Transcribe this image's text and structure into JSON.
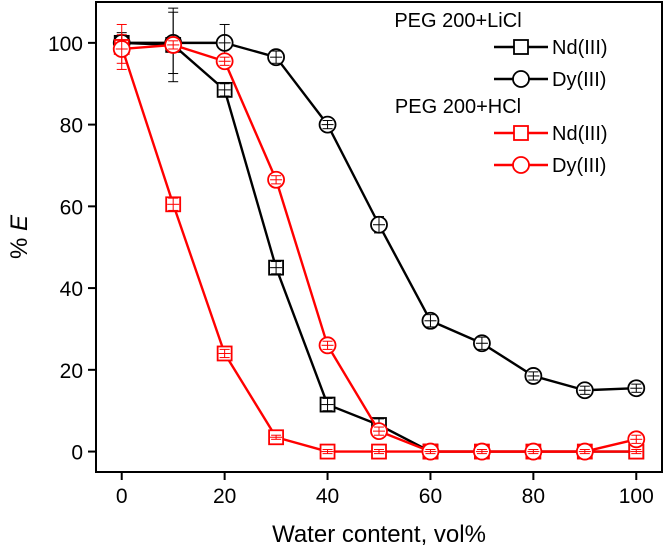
{
  "chart_data": {
    "type": "line",
    "xlabel": "Water content, vol%",
    "ylabel_prefix": "% ",
    "ylabel_var": "E",
    "xlim": [
      -5,
      105
    ],
    "ylim": [
      -5,
      110
    ],
    "xticks": [
      0,
      20,
      40,
      60,
      80,
      100
    ],
    "yticks": [
      0,
      20,
      40,
      60,
      80,
      100
    ],
    "xtick_labels": [
      "0",
      "20",
      "40",
      "60",
      "80",
      "100"
    ],
    "ytick_labels": [
      "0",
      "20",
      "40",
      "60",
      "80",
      "100"
    ],
    "grid": false,
    "legend_position": "top-right",
    "legend_groups": [
      {
        "title": "PEG 200+LiCl",
        "series": [
          0,
          1
        ]
      },
      {
        "title": "PEG 200+HCl",
        "series": [
          2,
          3
        ]
      }
    ],
    "series": [
      {
        "name": "Nd(III)",
        "group": "PEG 200+LiCl",
        "marker": "square",
        "color": "#000000",
        "x": [
          0,
          10,
          20,
          30,
          40,
          50,
          60,
          100
        ],
        "y": [
          100,
          99.5,
          88.5,
          45,
          11.5,
          6.5,
          0,
          0
        ],
        "err": [
          1.5,
          9,
          1.5,
          1.5,
          1.5,
          1.5,
          0.5,
          0.5
        ]
      },
      {
        "name": "Dy(III)",
        "group": "PEG 200+LiCl",
        "marker": "circle",
        "color": "#000000",
        "x": [
          0,
          10,
          20,
          30,
          40,
          50,
          60,
          70,
          80,
          90,
          100
        ],
        "y": [
          100,
          100,
          100,
          96.5,
          80,
          55.5,
          32,
          26.5,
          18.5,
          15,
          15.5
        ],
        "err": [
          2.5,
          7.5,
          4.5,
          1.5,
          1,
          2,
          1.5,
          1.5,
          1,
          1,
          1
        ]
      },
      {
        "name": "Nd(III)",
        "group": "PEG 200+HCl",
        "marker": "square",
        "color": "#ff0000",
        "x": [
          0,
          10,
          20,
          30,
          40,
          50,
          60,
          70,
          80,
          90,
          100
        ],
        "y": [
          99,
          60.5,
          24,
          3.5,
          0,
          0,
          0,
          0,
          0,
          0,
          0
        ],
        "err": [
          5.5,
          1.5,
          1,
          0.5,
          0.5,
          0.5,
          0.5,
          0.5,
          0.5,
          0.5,
          0.5
        ]
      },
      {
        "name": "Dy(III)",
        "group": "PEG 200+HCl",
        "marker": "circle",
        "color": "#ff0000",
        "x": [
          0,
          10,
          20,
          30,
          40,
          50,
          60,
          70,
          80,
          90,
          100
        ],
        "y": [
          98.5,
          99.5,
          95.5,
          66.5,
          26,
          5,
          0,
          0,
          0,
          0,
          3
        ],
        "err": [
          3.5,
          1,
          1,
          1,
          1,
          1,
          0.5,
          0.5,
          0.5,
          0.5,
          1
        ]
      }
    ]
  }
}
